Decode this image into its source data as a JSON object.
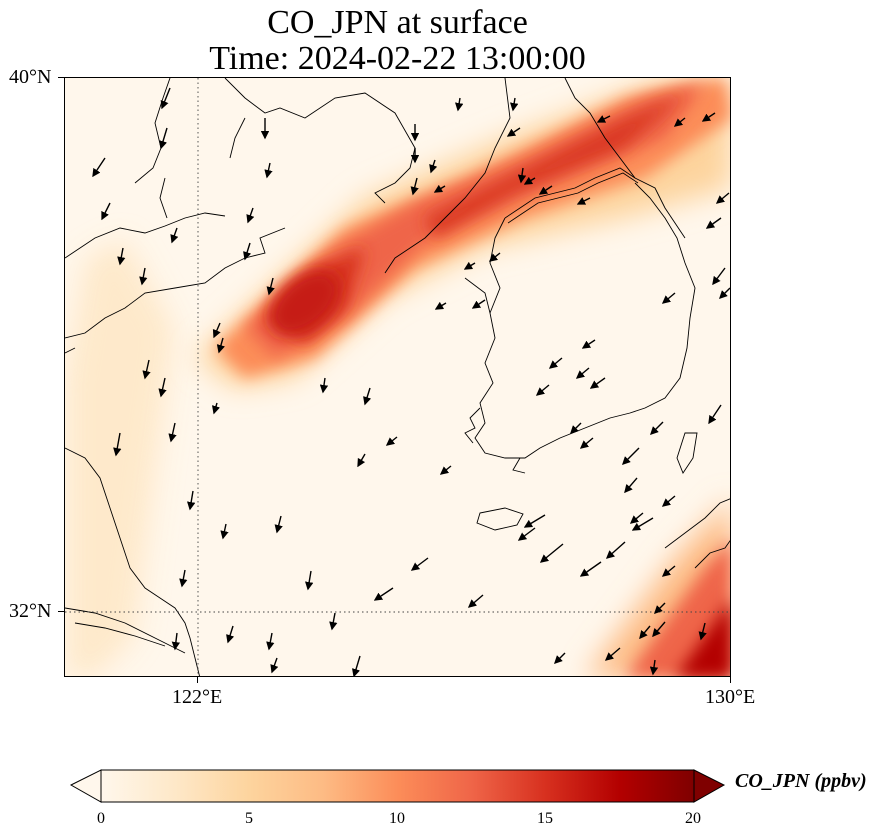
{
  "title": {
    "line1": "CO_JPN at surface",
    "line2": "Time: 2024-02-22 13:00:00"
  },
  "axes": {
    "lat_labels": [
      "40°N",
      "32°N"
    ],
    "lon_labels": [
      "122°E",
      "130°E"
    ]
  },
  "map": {
    "projection": "PlateCarree",
    "lon_range": [
      120,
      130
    ],
    "lat_range": [
      31,
      40
    ],
    "gridlines": "dotted at 122°E and 32°N",
    "features": [
      "coastlines",
      "country borders",
      "wind vectors"
    ]
  },
  "colorbar": {
    "label": "CO_JPN (ppbv)",
    "ticks": [
      "0",
      "5",
      "10",
      "15",
      "20"
    ],
    "range": [
      0,
      20
    ],
    "extend": "both",
    "colormap": "OrRd",
    "colors": [
      "#fff7ec",
      "#fee8c8",
      "#fdd49e",
      "#fdbb84",
      "#fc8d59",
      "#ef6548",
      "#d7301f",
      "#b30000",
      "#7f0000"
    ]
  },
  "chart_data": {
    "type": "heatmap",
    "variable": "CO_JPN",
    "units": "ppbv",
    "features": [
      {
        "region": "plume over Bohai Sea / NE of Shandong toward Korea border",
        "value_ppbv": 16
      },
      {
        "region": "peak near 123.5°E 37.0°N",
        "value_ppbv": 17
      },
      {
        "region": "band along Liaodong coast",
        "value_ppbv": 13
      },
      {
        "region": "SE corner near Kyushu",
        "value_ppbv": 20
      },
      {
        "region": "background over Yellow Sea and Korea",
        "value_ppbv": 2
      }
    ]
  }
}
